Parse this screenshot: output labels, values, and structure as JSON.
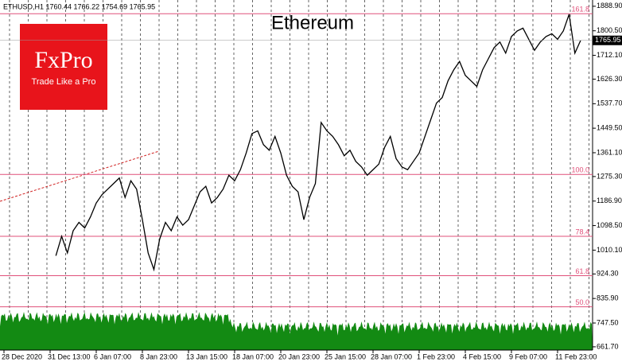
{
  "chart_data": {
    "type": "line",
    "title": "Ethereum",
    "header": "ETHUSD,H1  1760.44 1766.22 1754.69 1765.95",
    "brand": "FxPro",
    "slogan": "Trade Like a Pro",
    "color": "#000000",
    "level_color": "#e0507a",
    "current_price": 1765.95,
    "categories": [
      "28 Dec 2020",
      null,
      null,
      null,
      null,
      null,
      null,
      null,
      "31 Dec 13:00",
      null,
      null,
      null,
      null,
      null,
      null,
      null,
      "6 Jan 07:00",
      null,
      null,
      null,
      null,
      null,
      null,
      null,
      "8 Jan 23:00",
      null,
      null,
      null,
      null,
      null,
      null,
      null,
      "13 Jan 15:00",
      null,
      null,
      null,
      null,
      null,
      null,
      null,
      "18 Jan 07:00",
      null,
      null,
      null,
      null,
      null,
      null,
      null,
      "20 Jan 23:00",
      null,
      null,
      null,
      null,
      null,
      null,
      null,
      "25 Jan 15:00",
      null,
      null,
      null,
      null,
      null,
      null,
      null,
      "28 Jan 07:00",
      null,
      null,
      null,
      null,
      null,
      null,
      null,
      "1 Feb 23:00",
      null,
      null,
      null,
      null,
      null,
      null,
      null,
      "4 Feb 15:00",
      null,
      null,
      null,
      null,
      null,
      null,
      null,
      "9 Feb 07:00",
      null,
      null,
      null,
      null,
      null,
      null,
      null,
      "11 Feb 23:00",
      null,
      null,
      null,
      null
    ],
    "values": [
      null,
      null,
      null,
      null,
      null,
      null,
      null,
      null,
      null,
      990,
      1060,
      1000,
      1080,
      1110,
      1090,
      1130,
      1180,
      1210,
      1230,
      1250,
      1270,
      1200,
      1260,
      1230,
      1120,
      1000,
      940,
      1050,
      1110,
      1080,
      1130,
      1100,
      1120,
      1170,
      1220,
      1240,
      1180,
      1200,
      1230,
      1280,
      1260,
      1300,
      1360,
      1430,
      1440,
      1390,
      1370,
      1420,
      1360,
      1280,
      1240,
      1220,
      1120,
      1200,
      1250,
      1470,
      1440,
      1420,
      1390,
      1350,
      1370,
      1330,
      1310,
      1280,
      1300,
      1320,
      1380,
      1420,
      1340,
      1310,
      1300,
      1330,
      1360,
      1420,
      1480,
      1540,
      1560,
      1620,
      1660,
      1690,
      1640,
      1620,
      1600,
      1660,
      1700,
      1740,
      1760,
      1720,
      1780,
      1800,
      1810,
      1770,
      1730,
      1760,
      1780,
      1790,
      1770,
      1800,
      1860,
      1720,
      1766
    ],
    "levels": [
      {
        "label": "161.8",
        "value": 1862
      },
      {
        "label": "100.0",
        "value": 1283
      },
      {
        "label": "78.4",
        "value": 1060
      },
      {
        "label": "61.8",
        "value": 918
      },
      {
        "label": "50.0",
        "value": 806
      }
    ],
    "ylim": [
      650,
      1900
    ],
    "yticks": [
      {
        "value": 1888.9,
        "label": "1888.90"
      },
      {
        "value": 1800.5,
        "label": "1800.50"
      },
      {
        "value": 1712.1,
        "label": "1712.10"
      },
      {
        "value": 1626.3,
        "label": "1626.30"
      },
      {
        "value": 1537.7,
        "label": "1537.70"
      },
      {
        "value": 1449.5,
        "label": "1449.50"
      },
      {
        "value": 1361.1,
        "label": "1361.10"
      },
      {
        "value": 1275.3,
        "label": "1275.30"
      },
      {
        "value": 1186.9,
        "label": "1186.90"
      },
      {
        "value": 1098.5,
        "label": "1098.50"
      },
      {
        "value": 1010.1,
        "label": "1010.10"
      },
      {
        "value": 924.3,
        "label": "924.30"
      },
      {
        "value": 835.9,
        "label": "835.90"
      },
      {
        "value": 747.5,
        "label": "747.50"
      },
      {
        "value": 661.7,
        "label": "661.70"
      }
    ]
  }
}
